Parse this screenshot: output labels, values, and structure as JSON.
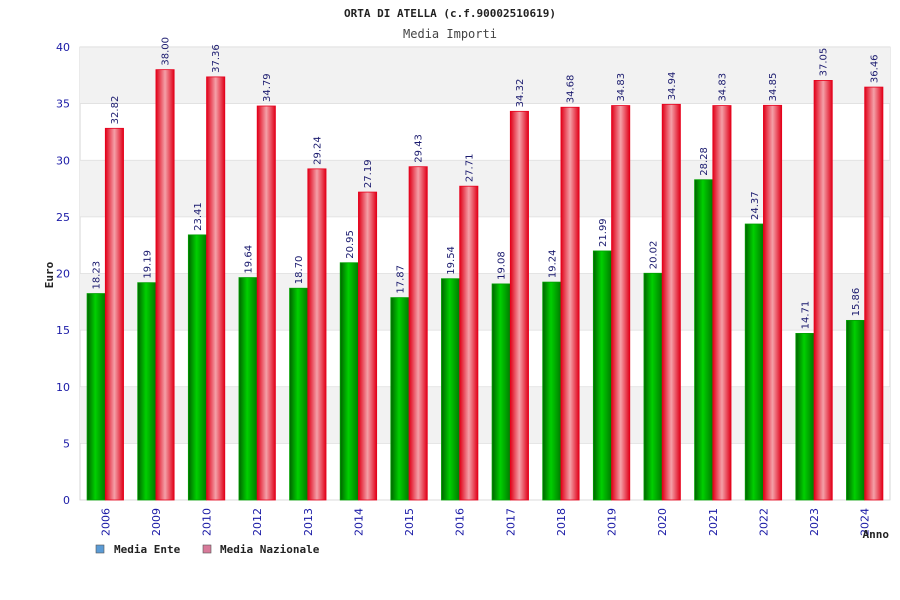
{
  "chart_data": {
    "type": "bar",
    "title": "ORTA DI ATELLA (c.f.90002510619)",
    "subtitle": "Media Importi",
    "xlabel": "Anno",
    "ylabel": "Euro",
    "ylim": [
      0,
      40
    ],
    "yticks": [
      "0",
      "5",
      "10",
      "15",
      "20",
      "25",
      "30",
      "35",
      "40"
    ],
    "grid": true,
    "legend_position": "bottom-left",
    "categories": [
      "2006",
      "2009",
      "2010",
      "2012",
      "2013",
      "2014",
      "2015",
      "2016",
      "2017",
      "2018",
      "2019",
      "2020",
      "2021",
      "2022",
      "2023",
      "2024"
    ],
    "series": [
      {
        "name": "Media Ente",
        "color": "#00a800",
        "legend_color": "#5b9bd5",
        "values": [
          18.23,
          19.19,
          23.41,
          19.64,
          18.7,
          20.95,
          17.87,
          19.54,
          19.08,
          19.24,
          21.99,
          20.02,
          28.28,
          24.37,
          14.71,
          15.86
        ],
        "labels": [
          "18.23",
          "19.19",
          "23.41",
          "19.64",
          "18.70",
          "20.95",
          "17.87",
          "19.54",
          "19.08",
          "19.24",
          "21.99",
          "20.02",
          "28.28",
          "24.37",
          "14.71",
          "15.86"
        ]
      },
      {
        "name": "Media Nazionale",
        "color": "#e8001c",
        "legend_color": "#d87a9a",
        "values": [
          32.82,
          38.0,
          37.36,
          34.79,
          29.24,
          27.19,
          29.43,
          27.71,
          34.32,
          34.68,
          34.83,
          34.94,
          34.83,
          34.85,
          37.05,
          36.46
        ],
        "labels": [
          "32.82",
          "38.00",
          "37.36",
          "34.79",
          "29.24",
          "27.19",
          "29.43",
          "27.71",
          "34.32",
          "34.68",
          "34.83",
          "34.94",
          "34.83",
          "34.85",
          "37.05",
          "36.46"
        ]
      }
    ]
  }
}
